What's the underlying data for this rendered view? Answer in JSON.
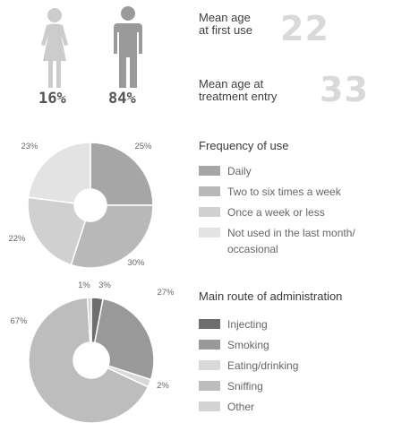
{
  "gender": {
    "female_pct": "16%",
    "male_pct": "84%",
    "female_icon": "female-figure-icon",
    "male_icon": "male-figure-icon",
    "female_color": "#cccccc",
    "male_color": "#9a9a9a"
  },
  "stats": {
    "first_use_label_1": "Mean age",
    "first_use_label_2": "at first use",
    "first_use_value": "22",
    "treatment_label_1": "Mean age at",
    "treatment_label_2": "treatment entry",
    "treatment_value": "33"
  },
  "chart_data": [
    {
      "type": "pie",
      "title": "Frequency of use",
      "donut": true,
      "start_angle_deg": 0,
      "categories": [
        "Daily",
        "Two to six times a week",
        "Once a week or less",
        "Not used in the last month/ occasional"
      ],
      "values": [
        25,
        30,
        22,
        23
      ],
      "value_labels": [
        "25%",
        "30%",
        "22%",
        "23%"
      ],
      "legend_lines": [
        [
          "Daily"
        ],
        [
          "Two to six times a week"
        ],
        [
          "Once a week or less"
        ],
        [
          "Not used in the last month/",
          "occasional"
        ]
      ],
      "colors": [
        "#a6a6a6",
        "#b8b8b8",
        "#d0d0d0",
        "#e3e3e3"
      ]
    },
    {
      "type": "pie",
      "title": "Main route of administration",
      "donut": true,
      "start_angle_deg": 0,
      "categories": [
        "Injecting",
        "Smoking",
        "Eating/drinking",
        "Sniffing",
        "Other"
      ],
      "values": [
        3,
        27,
        2,
        67,
        1
      ],
      "value_labels": [
        "3%",
        "27%",
        "2%",
        "67%",
        "1%"
      ],
      "legend_lines": [
        [
          "Injecting"
        ],
        [
          "Smoking"
        ],
        [
          "Eating/drinking"
        ],
        [
          "Sniffing"
        ],
        [
          "Other"
        ]
      ],
      "colors": [
        "#6e6e6e",
        "#999999",
        "#d9d9d9",
        "#bdbdbd",
        "#d3d3d3"
      ]
    }
  ]
}
